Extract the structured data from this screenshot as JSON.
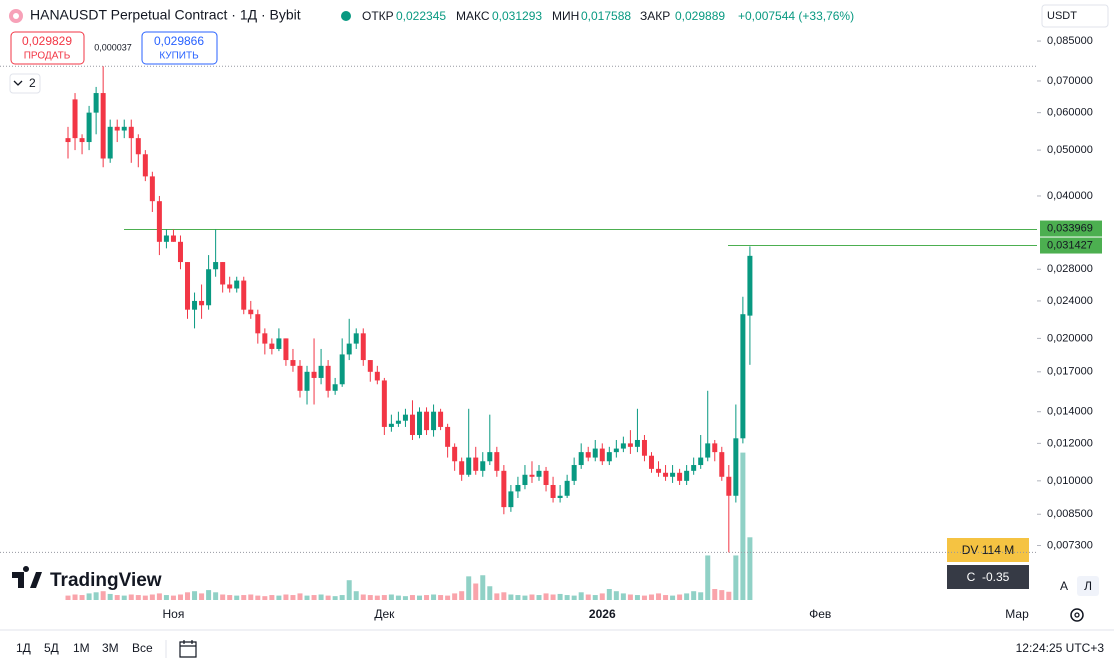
{
  "header": {
    "title": "HANAUSDT Perpetual Contract · 1Д · Bybit",
    "ohlc": [
      {
        "label": "ОТКР",
        "value": "0,022345"
      },
      {
        "label": "МАКС",
        "value": "0,031293"
      },
      {
        "label": "МИН",
        "value": "0,017588"
      },
      {
        "label": "ЗАКР",
        "value": "0,029889"
      }
    ],
    "change": "+0,007544 (+33,76%)"
  },
  "trade": {
    "sell_price": "0,029829",
    "sell_label": "ПРОДАТЬ",
    "spread": "0,000037",
    "buy_price": "0,029866",
    "buy_label": "КУПИТЬ"
  },
  "collapse_count": "2",
  "logo": "TradingView",
  "currency": "USDT",
  "indicators": [
    "DV 114 M",
    "C  -0.35"
  ],
  "scale_buttons": [
    "A",
    "Л"
  ],
  "toolbar": {
    "ranges": [
      "1Д",
      "5Д",
      "1М",
      "3М",
      "Все"
    ],
    "clock": "12:24:25 UTC+3"
  },
  "chart_data": {
    "type": "candlestick",
    "log_scale": true,
    "categories": [
      null,
      null,
      null,
      null,
      null,
      null,
      null,
      null,
      null,
      null,
      null,
      null,
      null,
      null,
      null,
      "Ноя",
      null,
      null,
      null,
      null,
      null,
      null,
      null,
      null,
      null,
      null,
      null,
      null,
      null,
      null,
      null,
      null,
      null,
      null,
      null,
      null,
      null,
      null,
      null,
      null,
      null,
      null,
      null,
      null,
      null,
      "Дек",
      null,
      null,
      null,
      null,
      null,
      null,
      null,
      null,
      null,
      null,
      null,
      null,
      null,
      null,
      null,
      null,
      null,
      null,
      null,
      null,
      null,
      null,
      null,
      null,
      null,
      null,
      null,
      null,
      null,
      null,
      "2026",
      null,
      null,
      null,
      null,
      null,
      null,
      null,
      null,
      null,
      null,
      null,
      null,
      null,
      null,
      null,
      null,
      null,
      null,
      null,
      null,
      null
    ],
    "future_labels": [
      "Фев",
      "Мар"
    ],
    "up_color": "#089981",
    "down_color": "#f23645",
    "open": [
      0.053,
      0.064,
      0.053,
      0.052,
      0.06,
      0.066,
      0.048,
      0.056,
      0.055,
      0.056,
      0.053,
      0.049,
      0.044,
      0.039,
      0.032,
      0.033,
      0.032,
      0.029,
      0.023,
      0.024,
      0.0235,
      0.028,
      0.029,
      0.026,
      0.0255,
      0.0265,
      0.023,
      0.0225,
      0.0205,
      0.0195,
      0.019,
      0.02,
      0.018,
      0.0175,
      0.0155,
      0.017,
      0.0165,
      0.0175,
      0.0155,
      0.016,
      0.0185,
      0.0195,
      0.0205,
      0.018,
      0.017,
      0.0163,
      0.013,
      0.0132,
      0.0134,
      0.0138,
      0.0125,
      0.014,
      0.0128,
      0.014,
      0.013,
      0.0118,
      0.011,
      0.0103,
      0.0112,
      0.0105,
      0.011,
      0.0115,
      0.0105,
      0.0088,
      0.0095,
      0.0098,
      0.0103,
      0.0102,
      0.0105,
      0.0098,
      0.0092,
      0.0093,
      0.01,
      0.0108,
      0.0115,
      0.0112,
      0.0117,
      0.011,
      0.0115,
      0.0117,
      0.012,
      0.0118,
      0.0122,
      0.0113,
      0.0106,
      0.0104,
      0.0102,
      0.0104,
      0.01,
      0.0105,
      0.0108,
      0.0112,
      0.012,
      0.0115,
      0.0102,
      0.0093,
      0.0123,
      0.022345
    ],
    "high": [
      0.056,
      0.066,
      0.054,
      0.062,
      0.068,
      0.0752,
      0.058,
      0.058,
      0.058,
      0.058,
      0.054,
      0.05,
      0.045,
      0.04,
      0.034,
      0.034,
      0.033,
      0.029,
      0.025,
      0.026,
      0.03,
      0.034,
      0.029,
      0.027,
      0.027,
      0.027,
      0.024,
      0.023,
      0.021,
      0.02,
      0.021,
      0.02,
      0.019,
      0.018,
      0.0175,
      0.02,
      0.019,
      0.018,
      0.0165,
      0.02,
      0.022,
      0.021,
      0.021,
      0.018,
      0.0175,
      0.0165,
      0.0138,
      0.014,
      0.0142,
      0.0148,
      0.0143,
      0.0143,
      0.0145,
      0.0142,
      0.0132,
      0.012,
      0.0112,
      0.0142,
      0.0118,
      0.0115,
      0.0138,
      0.0118,
      0.0108,
      0.0098,
      0.0102,
      0.0108,
      0.011,
      0.0108,
      0.0107,
      0.0102,
      0.0098,
      0.0103,
      0.0112,
      0.012,
      0.0118,
      0.0122,
      0.012,
      0.0118,
      0.0122,
      0.0124,
      0.0128,
      0.0142,
      0.0125,
      0.0115,
      0.011,
      0.0108,
      0.0108,
      0.0106,
      0.0108,
      0.0112,
      0.0125,
      0.0155,
      0.0122,
      0.0118,
      0.0108,
      0.0145,
      0.0245,
      0.031293
    ],
    "low": [
      0.048,
      0.05,
      0.049,
      0.05,
      0.054,
      0.046,
      0.047,
      0.052,
      0.053,
      0.047,
      0.046,
      0.043,
      0.037,
      0.03,
      0.031,
      0.032,
      0.028,
      0.022,
      0.021,
      0.022,
      0.023,
      0.027,
      0.025,
      0.025,
      0.025,
      0.0225,
      0.022,
      0.0195,
      0.0185,
      0.0185,
      0.0188,
      0.0175,
      0.017,
      0.015,
      0.0145,
      0.0145,
      0.016,
      0.015,
      0.0152,
      0.0158,
      0.018,
      0.019,
      0.0175,
      0.0162,
      0.016,
      0.0125,
      0.0127,
      0.013,
      0.013,
      0.0122,
      0.0123,
      0.0125,
      0.0124,
      0.0128,
      0.0112,
      0.0105,
      0.01,
      0.0102,
      0.0103,
      0.0102,
      0.0108,
      0.0102,
      0.0085,
      0.0086,
      0.0092,
      0.0096,
      0.0099,
      0.01,
      0.0095,
      0.009,
      0.009,
      0.0092,
      0.0098,
      0.0106,
      0.011,
      0.011,
      0.0108,
      0.0108,
      0.0112,
      0.0115,
      0.0114,
      0.0115,
      0.011,
      0.0104,
      0.0102,
      0.01,
      0.0099,
      0.0098,
      0.0098,
      0.0103,
      0.0106,
      0.011,
      0.011,
      0.01,
      0.00706,
      0.009,
      0.012,
      0.017588
    ],
    "close": [
      0.052,
      0.053,
      0.052,
      0.06,
      0.066,
      0.048,
      0.056,
      0.055,
      0.056,
      0.053,
      0.049,
      0.044,
      0.039,
      0.032,
      0.033,
      0.032,
      0.029,
      0.023,
      0.024,
      0.0235,
      0.028,
      0.029,
      0.026,
      0.0255,
      0.0265,
      0.023,
      0.0225,
      0.0205,
      0.0195,
      0.019,
      0.02,
      0.018,
      0.0175,
      0.0155,
      0.017,
      0.0165,
      0.0175,
      0.0155,
      0.016,
      0.0185,
      0.0195,
      0.0205,
      0.018,
      0.017,
      0.0163,
      0.013,
      0.0132,
      0.0134,
      0.0138,
      0.0125,
      0.014,
      0.0128,
      0.014,
      0.013,
      0.0118,
      0.011,
      0.0103,
      0.0112,
      0.0105,
      0.011,
      0.0115,
      0.0105,
      0.0088,
      0.0095,
      0.0098,
      0.0103,
      0.0102,
      0.0105,
      0.0098,
      0.0092,
      0.0093,
      0.01,
      0.0108,
      0.0115,
      0.0112,
      0.0117,
      0.011,
      0.0115,
      0.0117,
      0.012,
      0.0118,
      0.0122,
      0.0113,
      0.0106,
      0.0104,
      0.0102,
      0.0104,
      0.01,
      0.0105,
      0.0108,
      0.0112,
      0.012,
      0.0115,
      0.0102,
      0.0093,
      0.0123,
      0.0225,
      0.029889
    ],
    "volume": [
      8,
      10,
      9,
      12,
      14,
      16,
      11,
      9,
      8,
      10,
      9,
      8,
      10,
      12,
      9,
      8,
      10,
      14,
      16,
      12,
      18,
      14,
      10,
      9,
      8,
      9,
      10,
      8,
      7,
      9,
      8,
      10,
      9,
      12,
      8,
      9,
      10,
      8,
      7,
      9,
      36,
      16,
      10,
      9,
      8,
      9,
      10,
      8,
      7,
      9,
      8,
      9,
      10,
      9,
      8,
      12,
      16,
      43,
      30,
      45,
      25,
      12,
      14,
      10,
      9,
      8,
      10,
      9,
      12,
      10,
      11,
      9,
      8,
      14,
      10,
      9,
      12,
      20,
      16,
      12,
      10,
      9,
      8,
      10,
      12,
      9,
      8,
      10,
      12,
      16,
      14,
      81,
      20,
      18,
      15,
      81,
      268,
      114
    ],
    "price_lines": [
      {
        "value": 0.033969,
        "label": "0,033969"
      },
      {
        "value": 0.031427,
        "label": "0,031427"
      }
    ],
    "line_color": "#4caf50",
    "ylim": [
      0.0056,
      0.1038
    ],
    "yticks": [
      {
        "value": 0.085,
        "label": "0,085000"
      },
      {
        "value": 0.07,
        "label": "0,070000"
      },
      {
        "value": 0.06,
        "label": "0,060000"
      },
      {
        "value": 0.05,
        "label": "0,050000"
      },
      {
        "value": 0.04,
        "label": "0,040000"
      },
      {
        "value": 0.028,
        "label": "0,028000"
      },
      {
        "value": 0.024,
        "label": "0,024000"
      },
      {
        "value": 0.02,
        "label": "0,020000"
      },
      {
        "value": 0.017,
        "label": "0,017000"
      },
      {
        "value": 0.014,
        "label": "0,014000"
      },
      {
        "value": 0.012,
        "label": "0,012000"
      },
      {
        "value": 0.01,
        "label": "0,010000"
      },
      {
        "value": 0.0085,
        "label": "0,008500"
      },
      {
        "value": 0.0073,
        "label": "0,007300"
      }
    ]
  }
}
